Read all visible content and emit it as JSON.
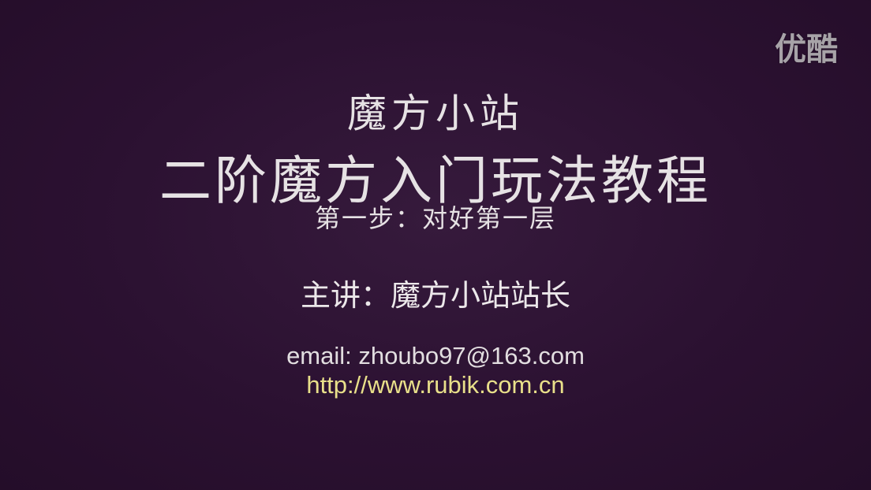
{
  "watermark": {
    "text": "优酷"
  },
  "slide": {
    "site_name": "魔方小站",
    "main_title": "二阶魔方入门玩法教程",
    "step": "第一步：对好第一层",
    "presenter": "主讲：魔方小站站长",
    "email": "email: zhoubo97@163.com",
    "url": "http://www.rubik.com.cn"
  },
  "colors": {
    "background": "#2b1131",
    "text": "#e6e2e4",
    "url": "#e9e08a"
  }
}
